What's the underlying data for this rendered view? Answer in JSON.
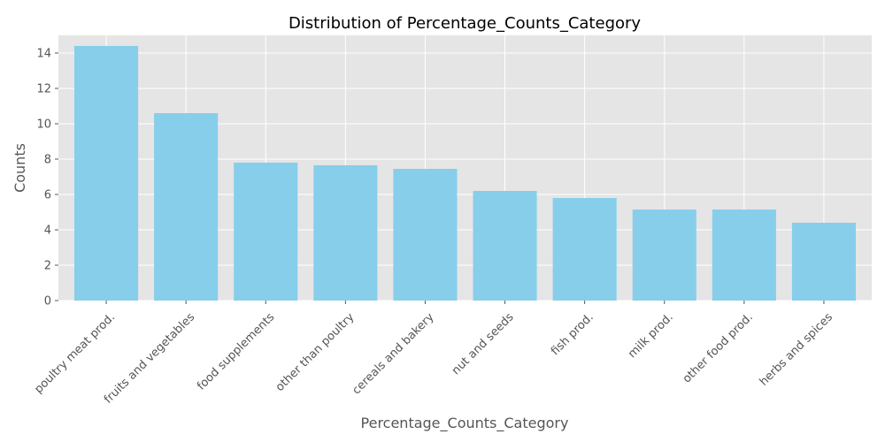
{
  "chart_data": {
    "type": "bar",
    "title": "Distribution of Percentage_Counts_Category",
    "xlabel": "Percentage_Counts_Category",
    "ylabel": "Counts",
    "categories": [
      "poultry meat prod.",
      "fruits and vegetables",
      "food supplements",
      "other than poultry",
      "cereals and bakery",
      "nut and seeds",
      "fish prod.",
      "milk prod.",
      "other food prod.",
      "herbs and spices"
    ],
    "values": [
      14.4,
      10.6,
      7.8,
      7.65,
      7.45,
      6.2,
      5.8,
      5.15,
      5.15,
      4.4
    ],
    "ylim": [
      0,
      15
    ],
    "yticks": [
      0,
      2,
      4,
      6,
      8,
      10,
      12,
      14
    ],
    "grid": true,
    "bar_color": "#87CEEB",
    "plot_background": "#E5E5E5"
  }
}
